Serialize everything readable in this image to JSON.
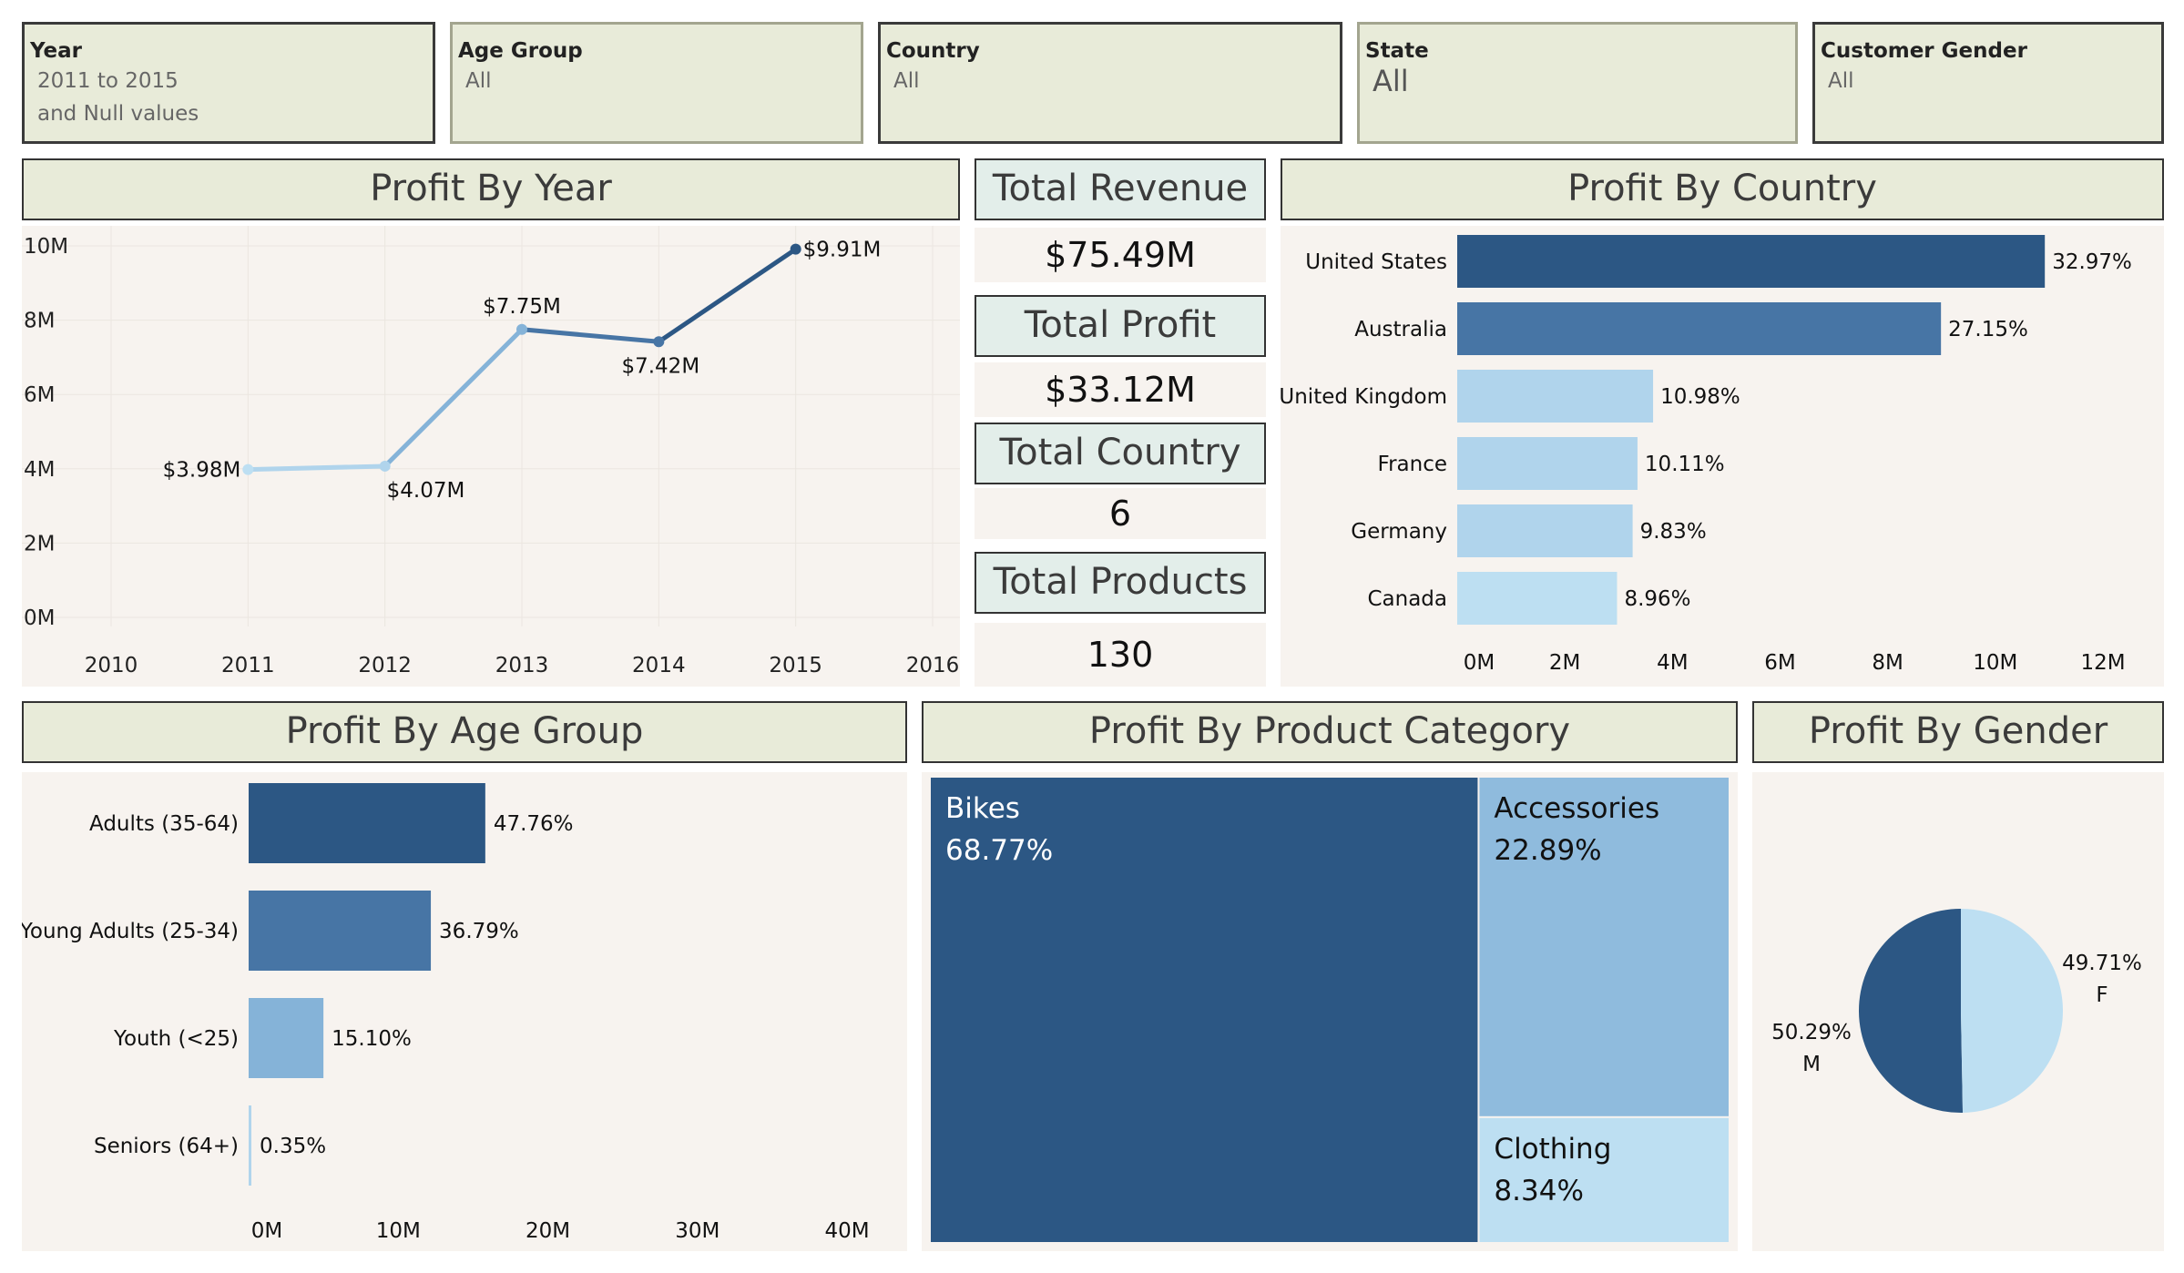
{
  "filters": [
    {
      "label": "Year",
      "value": "2011 to 2015",
      "value2": "and Null values"
    },
    {
      "label": "Age Group",
      "value": "All"
    },
    {
      "label": "Country",
      "value": "All"
    },
    {
      "label": "State",
      "value": "All"
    },
    {
      "label": "Customer Gender",
      "value": "All"
    }
  ],
  "kpis": [
    {
      "title": "Total Revenue",
      "value": "$75.49M"
    },
    {
      "title": "Total Profit",
      "value": "$33.12M"
    },
    {
      "title": "Total Country",
      "value": "6"
    },
    {
      "title": "Total Products",
      "value": "130"
    }
  ],
  "colors": {
    "dark": "#2c5784",
    "mid": "#4775a5",
    "light": "#b0d4ec",
    "lighter": "#bddff2",
    "accent": "#85b3d8",
    "treemap_mid": "#8fbbdd",
    "header_bg": "#e8ebd9",
    "panel_bg": "#f7f3ef"
  },
  "chart_data": [
    {
      "id": "profit-by-year",
      "type": "line",
      "title": "Profit By Year",
      "x": [
        2011,
        2012,
        2013,
        2014,
        2015
      ],
      "values": [
        3.98,
        4.07,
        7.75,
        7.42,
        9.91
      ],
      "labels": [
        "$3.98M",
        "$4.07M",
        "$7.75M",
        "$7.42M",
        "$9.91M"
      ],
      "xticks": [
        "2010",
        "2011",
        "2012",
        "2013",
        "2014",
        "2015",
        "2016"
      ],
      "yticks": [
        "0M",
        "2M",
        "4M",
        "6M",
        "8M",
        "10M"
      ],
      "xlim": [
        2010,
        2016
      ],
      "ylim": [
        0,
        10
      ],
      "grid": true
    },
    {
      "id": "profit-by-country",
      "type": "bar",
      "orientation": "horizontal",
      "title": "Profit By Country",
      "categories": [
        "United States",
        "Australia",
        "United Kingdom",
        "France",
        "Germany",
        "Canada"
      ],
      "values": [
        10.92,
        8.99,
        3.64,
        3.35,
        3.26,
        2.97
      ],
      "labels": [
        "32.97%",
        "27.15%",
        "10.98%",
        "10.11%",
        "9.83%",
        "8.96%"
      ],
      "xticks": [
        "0M",
        "2M",
        "4M",
        "6M",
        "8M",
        "10M",
        "12M"
      ],
      "xlim": [
        0,
        12
      ]
    },
    {
      "id": "profit-by-age-group",
      "type": "bar",
      "orientation": "horizontal",
      "title": "Profit By Age Group",
      "categories": [
        "Adults (35-64)",
        "Young Adults (25-34)",
        "Youth (<25)",
        "Seniors (64+)"
      ],
      "values": [
        15.82,
        12.18,
        5.0,
        0.12
      ],
      "labels": [
        "47.76%",
        "36.79%",
        "15.10%",
        "0.35%"
      ],
      "xticks": [
        "0M",
        "10M",
        "20M",
        "30M",
        "40M"
      ],
      "xlim": [
        0,
        40
      ]
    },
    {
      "id": "profit-by-product-category",
      "type": "treemap",
      "title": "Profit By Product Category",
      "categories": [
        "Bikes",
        "Accessories",
        "Clothing"
      ],
      "values": [
        68.77,
        22.89,
        8.34
      ],
      "labels": [
        "68.77%",
        "22.89%",
        "8.34%"
      ]
    },
    {
      "id": "profit-by-gender",
      "type": "pie",
      "title": "Profit By Gender",
      "categories": [
        "M",
        "F"
      ],
      "values": [
        50.29,
        49.71
      ],
      "labels": [
        "50.29%",
        "49.71%"
      ]
    }
  ]
}
